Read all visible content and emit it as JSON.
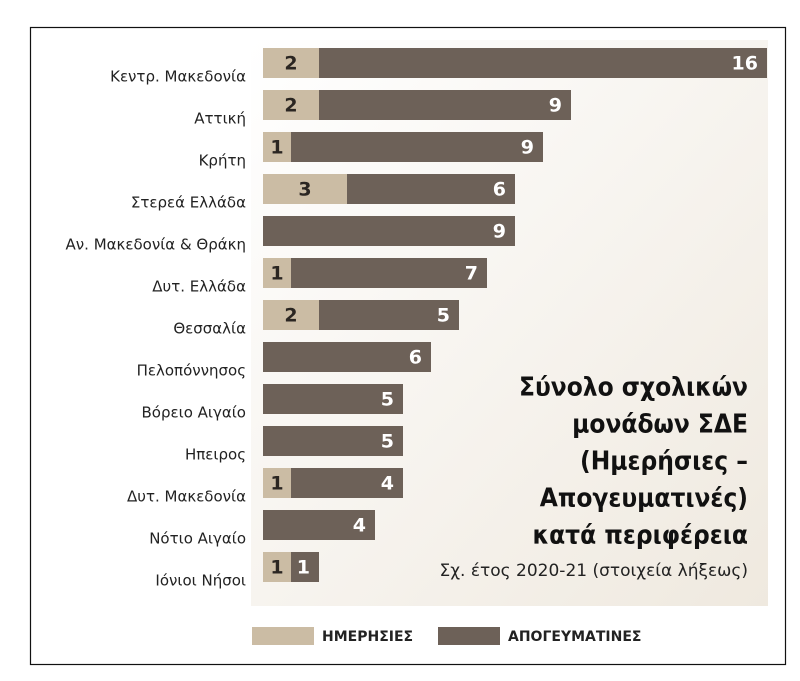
{
  "chart_data": {
    "type": "stacked-barh",
    "title": [
      "Σύνολο σχολικών",
      "μονάδων ΣΔΕ",
      "(Ημερήσιες –",
      "Απογευματινές)",
      "κατά περιφέρεια"
    ],
    "subtitle": "Σχ. έτος 2020-21 (στοιχεία λήξεως)",
    "categories": [
      "Κεντρ. Μακεδονία",
      "Αττική",
      "Κρήτη",
      "Στερεά Ελλάδα",
      "Αν. Μακεδονία & Θράκη",
      "Δυτ. Ελλάδα",
      "Θεσσαλία",
      "Πελοπόννησος",
      "Βόρειο Αιγαίο",
      "Ηπειρος",
      "Δυτ. Μακεδονία",
      "Νότιο Αιγαίο",
      "Ιόνιοι Νήσοι"
    ],
    "series": [
      {
        "name": "ΗΜΕΡΗΣΙΕΣ",
        "color": "#cbbca4",
        "values": [
          2,
          2,
          1,
          3,
          null,
          1,
          2,
          null,
          null,
          null,
          1,
          null,
          1
        ]
      },
      {
        "name": "ΑΠΟΓΕΥΜΑΤΙΝΕΣ",
        "color": "#6d6158",
        "values": [
          16,
          9,
          9,
          6,
          9,
          7,
          5,
          6,
          5,
          5,
          4,
          4,
          1
        ]
      }
    ]
  }
}
